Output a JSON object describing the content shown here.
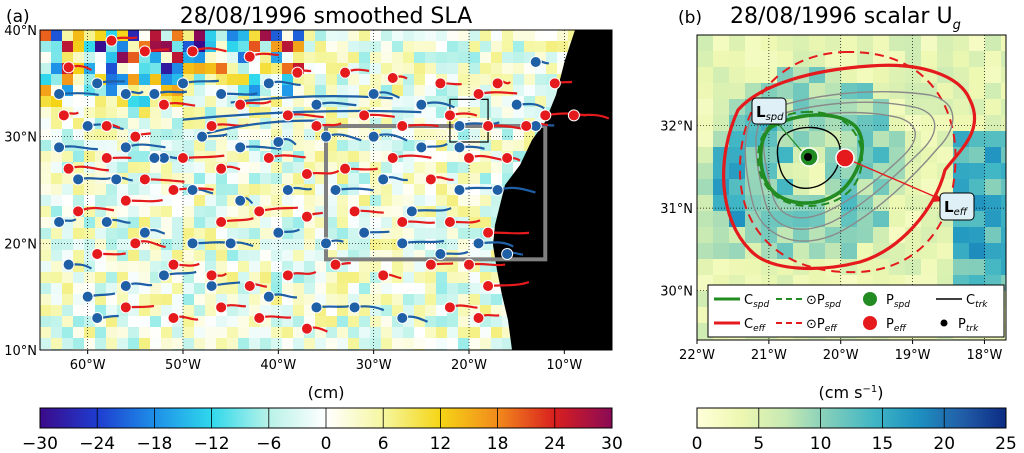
{
  "chart_data": [
    {
      "type": "heatmap",
      "panel_label": "(a)",
      "title": "28/08/1996 smoothed SLA",
      "xlim": [
        -65,
        -5
      ],
      "ylim": [
        10,
        40
      ],
      "x_ticks": [
        -60,
        -50,
        -40,
        -30,
        -20,
        -10
      ],
      "x_tick_labels": [
        "60°W",
        "50°W",
        "40°W",
        "30°W",
        "20°W",
        "10°W"
      ],
      "y_ticks": [
        10,
        20,
        30,
        40
      ],
      "y_tick_labels": [
        "10°N",
        "20°N",
        "30°N",
        "40°N"
      ],
      "grid": true,
      "colorbar": {
        "label": "(cm)",
        "range": [
          -30,
          30
        ],
        "ticks": [
          -30,
          -24,
          -18,
          -12,
          -6,
          0,
          6,
          12,
          18,
          24,
          30
        ],
        "tick_labels": [
          "−30",
          "−24",
          "−18",
          "−12",
          "−6",
          "0",
          "6",
          "12",
          "18",
          "24",
          "30"
        ],
        "colors": [
          "#3b0a8a",
          "#1e3ccf",
          "#1e8fe8",
          "#2fd8ec",
          "#b8f2e8",
          "#ffffff",
          "#f5f7a0",
          "#f5d515",
          "#f28a1c",
          "#d91f1f",
          "#8a0a55"
        ]
      },
      "boxes": [
        {
          "name": "large domain box",
          "lon": [
            -35,
            -12
          ],
          "lat": [
            18.5,
            31
          ]
        },
        {
          "name": "zoom box",
          "lon": [
            -22,
            -18
          ],
          "lat": [
            29.5,
            33.5
          ]
        }
      ],
      "eddies": {
        "anticyclonic_color": "#e41a1c",
        "cyclonic_color": "#1f5fa5",
        "anticyclonic_points": [
          [
            -62,
            36.5
          ],
          [
            -57.5,
            39
          ],
          [
            -54,
            38
          ],
          [
            -49,
            38
          ],
          [
            -43,
            37.5
          ],
          [
            -38,
            36
          ],
          [
            -33,
            36
          ],
          [
            -28,
            35.5
          ],
          [
            -23,
            35
          ],
          [
            -19,
            34
          ],
          [
            -17,
            35
          ],
          [
            -11,
            35
          ],
          [
            -62.5,
            32
          ],
          [
            -58,
            31
          ],
          [
            -55,
            30
          ],
          [
            -52,
            33
          ],
          [
            -47,
            31
          ],
          [
            -44,
            33
          ],
          [
            -39,
            32
          ],
          [
            -36,
            31
          ],
          [
            -31,
            32
          ],
          [
            -27,
            31
          ],
          [
            -22,
            32
          ],
          [
            -18,
            31
          ],
          [
            -14,
            31
          ],
          [
            -62,
            27
          ],
          [
            -58,
            28
          ],
          [
            -54,
            26
          ],
          [
            -50,
            28
          ],
          [
            -46,
            27
          ],
          [
            -41,
            28
          ],
          [
            -37,
            26.5
          ],
          [
            -33,
            27
          ],
          [
            -28,
            28
          ],
          [
            -24,
            26
          ],
          [
            -20,
            28
          ],
          [
            -16,
            28
          ],
          [
            -61,
            23
          ],
          [
            -56,
            24
          ],
          [
            -51,
            25
          ],
          [
            -46,
            22
          ],
          [
            -42,
            23
          ],
          [
            -37,
            22.5
          ],
          [
            -32,
            23
          ],
          [
            -27,
            22
          ],
          [
            -22,
            22
          ],
          [
            -18,
            21
          ],
          [
            -59,
            19
          ],
          [
            -55,
            20
          ],
          [
            -51,
            18
          ],
          [
            -47,
            17
          ],
          [
            -43,
            16
          ],
          [
            -39,
            17
          ],
          [
            -34,
            18
          ],
          [
            -29,
            17
          ],
          [
            -24,
            18
          ],
          [
            -20,
            18
          ],
          [
            -18,
            16
          ],
          [
            -56,
            14
          ],
          [
            -51,
            13
          ],
          [
            -46,
            14
          ],
          [
            -42,
            13
          ],
          [
            -37,
            12
          ],
          [
            -22,
            14
          ],
          [
            -19,
            13
          ],
          [
            -12,
            32
          ],
          [
            -9,
            32
          ]
        ],
        "cyclonic_points": [
          [
            -63,
            34
          ],
          [
            -59,
            35
          ],
          [
            -56,
            34
          ],
          [
            -53,
            34
          ],
          [
            -50,
            35
          ],
          [
            -46,
            34
          ],
          [
            -41,
            35
          ],
          [
            -36,
            33
          ],
          [
            -30,
            34
          ],
          [
            -25,
            33
          ],
          [
            -21,
            31
          ],
          [
            -15,
            33
          ],
          [
            -13,
            37
          ],
          [
            -60,
            31
          ],
          [
            -56,
            29
          ],
          [
            -52,
            28
          ],
          [
            -48,
            30
          ],
          [
            -44,
            29
          ],
          [
            -40,
            29.5
          ],
          [
            -35,
            30
          ],
          [
            -30,
            30
          ],
          [
            -25,
            29
          ],
          [
            -21,
            29
          ],
          [
            -13,
            31
          ],
          [
            -63,
            29
          ],
          [
            -61,
            26
          ],
          [
            -57,
            26
          ],
          [
            -53,
            28
          ],
          [
            -49,
            25
          ],
          [
            -44,
            24
          ],
          [
            -39,
            25
          ],
          [
            -34,
            25
          ],
          [
            -29,
            26
          ],
          [
            -26,
            23
          ],
          [
            -21,
            25
          ],
          [
            -17,
            25
          ],
          [
            -63,
            22
          ],
          [
            -58,
            22
          ],
          [
            -54,
            21
          ],
          [
            -49,
            20
          ],
          [
            -45,
            20
          ],
          [
            -40,
            21
          ],
          [
            -35,
            20
          ],
          [
            -31,
            21
          ],
          [
            -27,
            20
          ],
          [
            -23,
            19
          ],
          [
            -19,
            20
          ],
          [
            -16,
            19
          ],
          [
            -60,
            15
          ],
          [
            -56,
            16
          ],
          [
            -52,
            17
          ],
          [
            -47,
            16
          ],
          [
            -41,
            15
          ],
          [
            -36,
            14
          ],
          [
            -32,
            14
          ],
          [
            -27,
            13
          ],
          [
            -62,
            18
          ],
          [
            -59,
            13
          ]
        ]
      }
    },
    {
      "type": "heatmap",
      "panel_label": "(b)",
      "title": "28/08/1996 scalar U",
      "title_subscript": "g",
      "xlim": [
        -22,
        -17.7
      ],
      "ylim": [
        29.4,
        33.1
      ],
      "x_ticks": [
        -22,
        -21,
        -20,
        -19,
        -18
      ],
      "x_tick_labels": [
        "22°W",
        "21°W",
        "20°W",
        "19°W",
        "18°W"
      ],
      "y_ticks": [
        30,
        31,
        32
      ],
      "y_tick_labels": [
        "30°N",
        "31°N",
        "32°N"
      ],
      "grid": true,
      "colorbar": {
        "label": "(cm s",
        "label_sup": "−1",
        "label_close": ")",
        "range": [
          0,
          25
        ],
        "ticks": [
          0,
          5,
          10,
          15,
          20,
          25
        ],
        "tick_labels": [
          "0",
          "5",
          "10",
          "15",
          "20",
          "25"
        ],
        "colors": [
          "#ffffd9",
          "#edf8b1",
          "#c7e9b4",
          "#7fcdbb",
          "#41b6c4",
          "#1d91c0",
          "#225ea8",
          "#0c2c84"
        ]
      },
      "centers": {
        "P_spd": [
          -20.6,
          31.53
        ],
        "P_eff": [
          -20.2,
          31.52
        ],
        "P_trk": [
          -20.65,
          31.53
        ]
      },
      "annotations": [
        {
          "text": "L",
          "sub": "spd",
          "at": [
            -21.4,
            32.08
          ]
        },
        {
          "text": "L",
          "sub": "eff",
          "at": [
            -18.8,
            30.9
          ]
        }
      ],
      "legend": {
        "placement": "bottom",
        "items": [
          {
            "label": "C",
            "sub": "spd",
            "style": "solid",
            "color": "#228b22"
          },
          {
            "label": "⊙P",
            "sub": "spd",
            "style": "dashed",
            "color": "#228b22"
          },
          {
            "label": "P",
            "sub": "spd",
            "style": "dot-large",
            "color": "#228b22"
          },
          {
            "label": "C",
            "sub": "trk",
            "style": "solid-thin",
            "color": "#000000"
          },
          {
            "label": "C",
            "sub": "eff",
            "style": "solid",
            "color": "#e41a1c"
          },
          {
            "label": "⊙P",
            "sub": "eff",
            "style": "dashed",
            "color": "#e41a1c"
          },
          {
            "label": "P",
            "sub": "eff",
            "style": "dot-large",
            "color": "#e41a1c"
          },
          {
            "label": "P",
            "sub": "trk",
            "style": "dot-small",
            "color": "#000000"
          }
        ]
      }
    }
  ]
}
